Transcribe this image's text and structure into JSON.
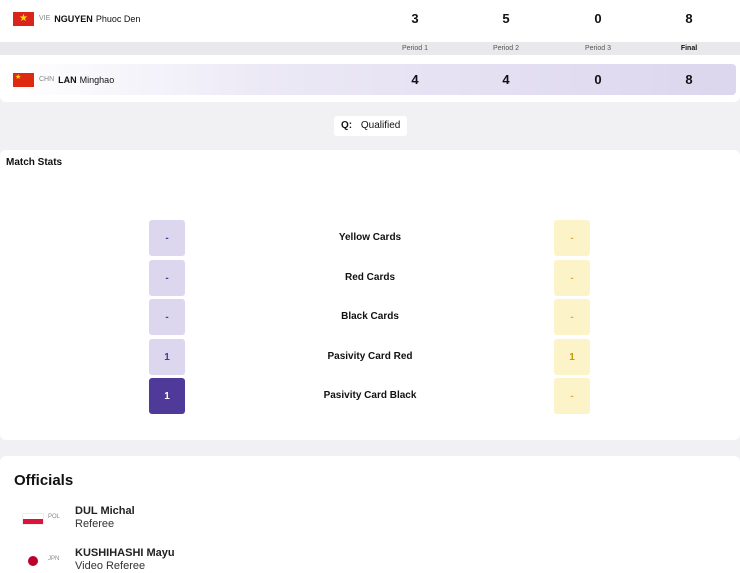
{
  "match": {
    "athletes": [
      {
        "noc": "VIE",
        "surname": "NGUYEN",
        "given": "Phuoc Den",
        "scores": [
          "3",
          "5",
          "0",
          "8"
        ],
        "flag_colors": [
          "#da251d",
          "#ffde00"
        ]
      },
      {
        "noc": "CHN",
        "surname": "LAN",
        "given": "Minghao",
        "scores": [
          "4",
          "4",
          "0",
          "8"
        ],
        "flag_colors": [
          "#de2910",
          "#ffde00"
        ]
      }
    ],
    "periods": [
      "Period 1",
      "Period 2",
      "Period 3",
      "Final"
    ]
  },
  "legend": {
    "code": "Q:",
    "text": "Qualified"
  },
  "stats": {
    "title": "Match Stats",
    "rows": [
      {
        "label": "Yellow Cards",
        "left": "-",
        "right": "-"
      },
      {
        "label": "Red Cards",
        "left": "-",
        "right": "-"
      },
      {
        "label": "Black Cards",
        "left": "-",
        "right": "-"
      },
      {
        "label": "Pasivity Card Red",
        "left": "1",
        "right": "1"
      },
      {
        "label": "Pasivity Card Black",
        "left": "1",
        "right": "-"
      }
    ],
    "colors": {
      "left_accent": "#4f3a9a",
      "left_bg": "#dcd6ee",
      "right_bg": "#fdf3c8",
      "right_accent": "#c79a00"
    }
  },
  "officials": {
    "title": "Officials",
    "items": [
      {
        "noc": "POL",
        "name": "DUL Michal",
        "role": "Referee"
      },
      {
        "noc": "JPN",
        "name": "KUSHIHASHI Mayu",
        "role": "Video Referee"
      }
    ]
  }
}
